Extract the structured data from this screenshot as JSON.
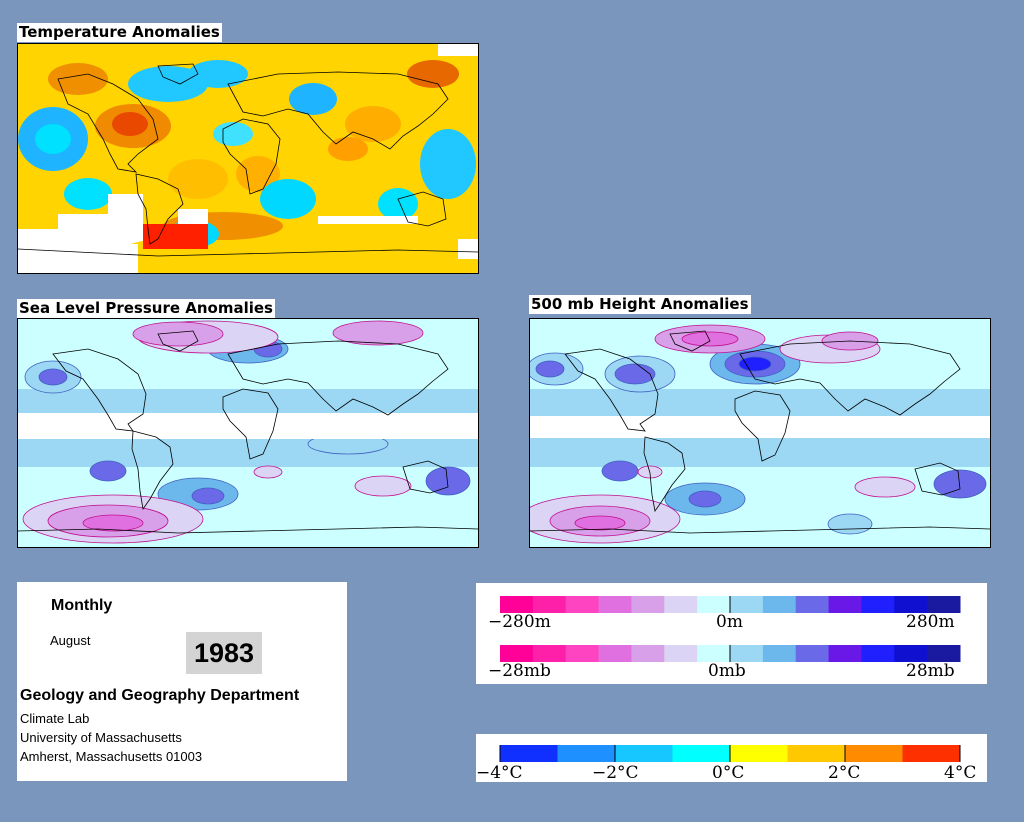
{
  "panels": {
    "temperature": {
      "title": "Temperature Anomalies"
    },
    "slp": {
      "title": "Sea Level Pressure Anomalies"
    },
    "height500": {
      "title": "500 mb Height Anomalies"
    }
  },
  "info": {
    "period": "Monthly",
    "month": "August",
    "year": "1983",
    "department": "Geology and Geography Department",
    "lab": "Climate Lab",
    "university": "University of Massachusetts",
    "address": "Amherst, Massachusetts 01003"
  },
  "legends": {
    "height": {
      "labels": [
        "−280m",
        "0m",
        "280m"
      ]
    },
    "pressure": {
      "labels": [
        "−28mb",
        "0mb",
        "28mb"
      ]
    },
    "temperature": {
      "labels": [
        "−4°C",
        "−2°C",
        "0°C",
        "2°C",
        "4°C"
      ]
    }
  },
  "colors": {
    "background": "#7b96bd",
    "anomaly_scale": [
      "#ff0099",
      "#ff20aa",
      "#ff44c2",
      "#e070e0",
      "#d8a0e8",
      "#dcd4f4",
      "#ccffff",
      "#9cd8f4",
      "#6cb8ec",
      "#6a6ae8",
      "#6a18e8",
      "#2020ff",
      "#1010d0",
      "#1a1aa0"
    ],
    "temperature_scale": [
      "#1030ff",
      "#1e90ff",
      "#16c8ff",
      "#00ffff",
      "#ffff00",
      "#ffc800",
      "#ff8c00",
      "#ff3000"
    ]
  }
}
